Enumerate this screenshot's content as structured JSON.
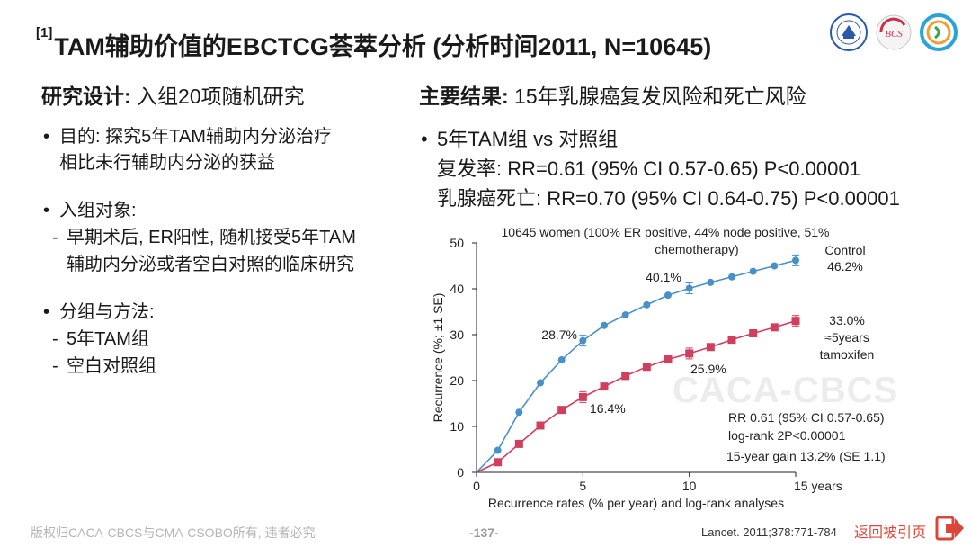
{
  "title": {
    "ref": "[1]",
    "text": "TAM辅助价值的EBCTCG荟萃分析 (分析时间2011, N=10645)"
  },
  "logos": [
    "logo-1",
    "BCS",
    "logo-3"
  ],
  "left": {
    "heading_bold": "研究设计:",
    "heading_rest": " 入组20项随机研究",
    "purpose": [
      "目的: 探究5年TAM辅助内分泌治疗",
      "相比未行辅助内分泌的获益"
    ],
    "subjects_head": "入组对象:",
    "subjects": [
      "早期术后, ER阳性, 随机接受5年TAM",
      "辅助内分泌或者空白对照的临床研究"
    ],
    "groups_head": "分组与方法:",
    "groups": [
      "5年TAM组",
      "空白对照组"
    ]
  },
  "right": {
    "heading_bold": "主要结果:",
    "heading_rest": " 15年乳腺癌复发风险和死亡风险",
    "line1": "5年TAM组 vs 对照组",
    "line2": "复发率: RR=0.61 (95% CI 0.57-0.65) P<0.00001",
    "line3": "乳腺癌死亡: RR=0.70 (95% CI 0.64-0.75) P<0.00001"
  },
  "chart_data": {
    "type": "line",
    "title_line1": "10645 women (100% ER positive, 44% node positive, 51%",
    "title_line2": "chemotherapy)",
    "xlabel": "Recurrence rates (% per year) and log-rank analyses",
    "ylabel": "Recurrence (%; ±1 SE)",
    "xlim": [
      0,
      15
    ],
    "ylim": [
      0,
      50
    ],
    "x_ticks": [
      "0",
      "5",
      "10",
      "15 years"
    ],
    "y_ticks": [
      "0",
      "10",
      "20",
      "30",
      "40",
      "50"
    ],
    "series": [
      {
        "name": "Control",
        "color": "#4a90c8",
        "x": [
          0,
          1,
          2,
          3,
          4,
          5,
          6,
          7,
          8,
          9,
          10,
          11,
          12,
          13,
          14,
          15
        ],
        "values": [
          0,
          4.8,
          13.1,
          19.5,
          24.5,
          28.7,
          32.0,
          34.3,
          36.5,
          38.6,
          40.1,
          41.4,
          42.6,
          43.8,
          45.0,
          46.2
        ]
      },
      {
        "name": "≈5years tamoxifen",
        "color": "#d0405e",
        "x": [
          0,
          1,
          2,
          3,
          4,
          5,
          6,
          7,
          8,
          9,
          10,
          11,
          12,
          13,
          14,
          15
        ],
        "values": [
          0,
          2.2,
          6.2,
          10.2,
          13.6,
          16.4,
          18.7,
          21.0,
          23.0,
          24.6,
          25.9,
          27.3,
          28.9,
          30.3,
          31.6,
          33.0
        ]
      }
    ],
    "annotations": {
      "control_label": "Control",
      "control_value": "46.2%",
      "c5": "28.7%",
      "c10": "40.1%",
      "t5": "16.4%",
      "t10": "25.9%",
      "tam_value": "33.0%",
      "tam_label1": "≈5years",
      "tam_label2": "tamoxifen",
      "stat1": "RR 0.61 (95% CI 0.57-0.65)",
      "stat2": "log-rank 2P<0.00001",
      "stat3": "15-year gain 13.2% (SE 1.1)"
    }
  },
  "watermark": "CACA-CBCS",
  "footer": {
    "copyright": "版权归CACA-CBCS与CMA-CSOBO所有, 违者必究",
    "page": "-137-",
    "reference": "Lancet. 2011;378:771-784",
    "back": "返回被引页"
  }
}
